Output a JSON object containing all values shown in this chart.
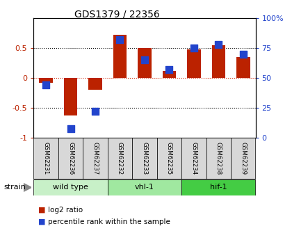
{
  "title": "GDS1379 / 22356",
  "samples": [
    "GSM62231",
    "GSM62236",
    "GSM62237",
    "GSM62232",
    "GSM62233",
    "GSM62235",
    "GSM62234",
    "GSM62238",
    "GSM62239"
  ],
  "log2_ratio": [
    -0.08,
    -0.62,
    -0.2,
    0.72,
    0.5,
    0.12,
    0.48,
    0.55,
    0.35
  ],
  "percentile_rank": [
    44,
    8,
    22,
    82,
    65,
    57,
    75,
    78,
    70
  ],
  "groups": [
    {
      "label": "wild type",
      "start": 0,
      "end": 3,
      "color": "#c8f0c8"
    },
    {
      "label": "vhl-1",
      "start": 3,
      "end": 6,
      "color": "#a0e8a0"
    },
    {
      "label": "hif-1",
      "start": 6,
      "end": 9,
      "color": "#44cc44"
    }
  ],
  "ylim_left": [
    -1,
    1
  ],
  "ylim_right": [
    0,
    100
  ],
  "yticks_left": [
    -1,
    -0.5,
    0,
    0.5
  ],
  "yticks_right": [
    0,
    25,
    50,
    75,
    100
  ],
  "bar_color_red": "#bb2200",
  "bar_color_blue": "#2244cc",
  "hline_color": "#cc2200",
  "dotline_color": "black",
  "background_color": "#ffffff",
  "strain_label": "strain",
  "legend_red_label": "log2 ratio",
  "legend_blue_label": "percentile rank within the sample",
  "bar_width": 0.55,
  "blue_square_size": 60
}
